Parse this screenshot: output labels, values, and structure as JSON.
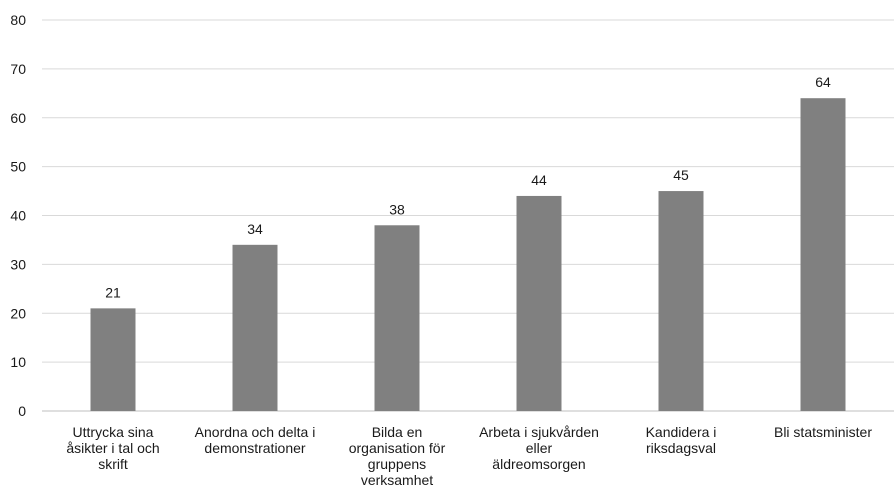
{
  "chart_data": {
    "type": "bar",
    "title": "",
    "xlabel": "",
    "ylabel": "",
    "ylim": [
      0,
      80
    ],
    "yticks": [
      0,
      10,
      20,
      30,
      40,
      50,
      60,
      70,
      80
    ],
    "grid": true,
    "legend": "none",
    "bar_color": "#808080",
    "grid_color": "#d9d9d9",
    "categories": [
      [
        "Uttrycka sina",
        "åsikter i tal och",
        "skrift"
      ],
      [
        "Anordna och delta i",
        "demonstrationer"
      ],
      [
        "Bilda en",
        "organisation för",
        "gruppens",
        "verksamhet"
      ],
      [
        "Arbeta i sjukvården",
        "eller",
        "äldreomsorgen"
      ],
      [
        "Kandidera i",
        "riksdagsval"
      ],
      [
        "Bli statsminister"
      ]
    ],
    "values": [
      21,
      34,
      38,
      44,
      45,
      64
    ],
    "data_labels": [
      "21",
      "34",
      "38",
      "44",
      "45",
      "64"
    ]
  }
}
